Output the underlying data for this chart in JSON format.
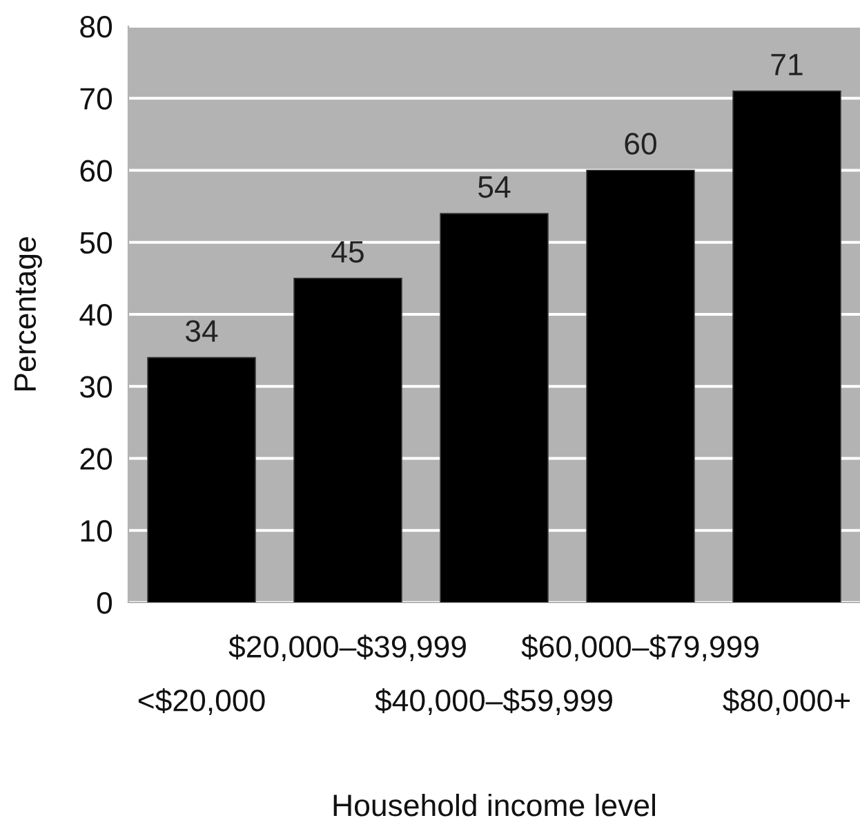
{
  "chart_data": {
    "type": "bar",
    "xlabel": "Household income level",
    "ylabel": "Percentage",
    "categories": [
      "<$20,000",
      "$20,000–$39,999",
      "$40,000–$59,999",
      "$60,000–$79,999",
      "$80,000+"
    ],
    "values": [
      34,
      45,
      54,
      60,
      71
    ],
    "color": "#000000",
    "ylim": [
      0,
      80
    ],
    "yticks": [
      0,
      10,
      20,
      30,
      40,
      50,
      60,
      70,
      80
    ],
    "grid": "y",
    "data_labels": true
  }
}
